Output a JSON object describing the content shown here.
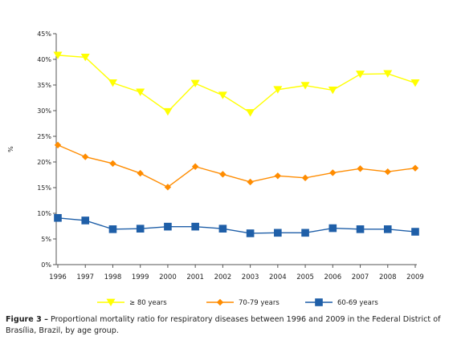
{
  "chart_data": {
    "type": "line",
    "ylabel": "%",
    "ylim": [
      0,
      45
    ],
    "yticks": [
      "0%",
      "5%",
      "10%",
      "15%",
      "20%",
      "25%",
      "30%",
      "35%",
      "40%",
      "45%"
    ],
    "x": [
      "1996",
      "1997",
      "1998",
      "1999",
      "2000",
      "2001",
      "2002",
      "2003",
      "2004",
      "2005",
      "2006",
      "2007",
      "2008",
      "2009"
    ],
    "grid": false,
    "legend_position": "bottom",
    "series": [
      {
        "name": "≥ 80 years",
        "color": "#ffff00",
        "marker": "triangle-down",
        "values": [
          40.8,
          40.4,
          35.4,
          33.6,
          29.8,
          35.3,
          33.0,
          29.6,
          34.1,
          34.9,
          34.0,
          37.1,
          37.2,
          35.4
        ]
      },
      {
        "name": "70-79 years",
        "color": "#ff8c00",
        "marker": "diamond",
        "values": [
          23.3,
          21.0,
          19.7,
          17.8,
          15.1,
          19.1,
          17.6,
          16.1,
          17.3,
          16.9,
          17.9,
          18.7,
          18.1,
          18.8
        ]
      },
      {
        "name": "60-69 years",
        "color": "#1f5fa8",
        "marker": "square",
        "values": [
          9.1,
          8.6,
          6.9,
          7.0,
          7.4,
          7.4,
          7.0,
          6.1,
          6.2,
          6.2,
          7.1,
          6.9,
          6.9,
          6.4
        ]
      }
    ]
  },
  "caption": {
    "label": "Figure 3 –",
    "text": "Proportional mortality ratio for respiratory diseases between 1996 and 2009 in the Federal District of Brasília, Brazil, by age group."
  }
}
